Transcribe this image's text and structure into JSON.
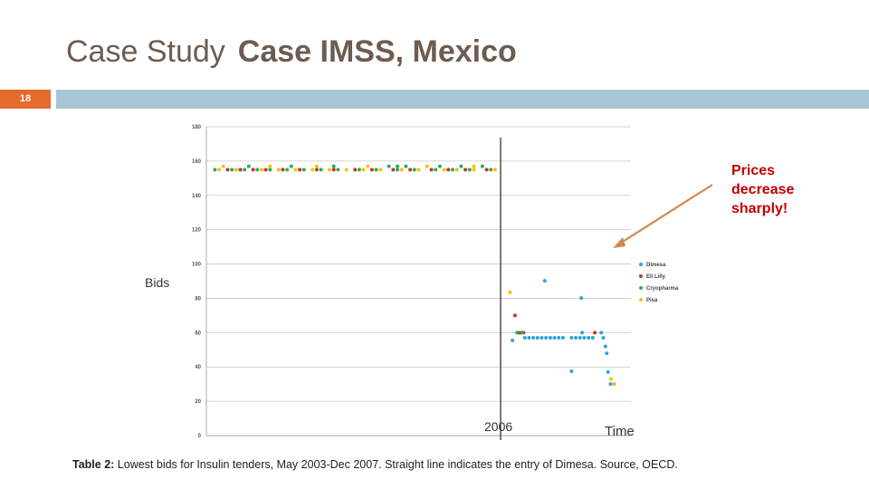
{
  "slide": {
    "title_prefix": "Case Study",
    "title_main": "Case IMSS, Mexico",
    "slide_number": "18",
    "callout": "Prices decrease sharply!",
    "bids_label": "Bids",
    "year_label": "2006",
    "time_label": "Time",
    "caption_bold": "Table 2:",
    "caption_text": " Lowest bids for Insulin tenders, May 2003-Dec 2007. Straight line indicates the entry of Dimesa. Source, OECD.",
    "accent_color": "#e36b2c",
    "band_color": "#a8c4d5",
    "callout_color": "#c00000",
    "arrow_color": "#d08850"
  },
  "chart_data": {
    "type": "scatter",
    "ylim": [
      0,
      180
    ],
    "yticks": [
      "0",
      "20",
      "40",
      "60",
      "80",
      "100",
      "120",
      "140",
      "160",
      "180"
    ],
    "xlim": [
      0,
      100
    ],
    "vline_x": 69.3,
    "legend": {
      "placement": "right"
    },
    "grid": true,
    "series": [
      {
        "name": "Dimesa",
        "color": "#2aa7d6",
        "points": [
          [
            72.1,
            55.5
          ],
          [
            79.7,
            90.2
          ],
          [
            88.3,
            80.2
          ],
          [
            75,
            57
          ],
          [
            76,
            57
          ],
          [
            77,
            57
          ],
          [
            78,
            57
          ],
          [
            79,
            57
          ],
          [
            80,
            57
          ],
          [
            81,
            57
          ],
          [
            82,
            57
          ],
          [
            83,
            57
          ],
          [
            84,
            57
          ],
          [
            86,
            57
          ],
          [
            87,
            57
          ],
          [
            88,
            57
          ],
          [
            89,
            57
          ],
          [
            90,
            57
          ],
          [
            91,
            57
          ],
          [
            88.5,
            60
          ],
          [
            93,
            60
          ],
          [
            93.5,
            57
          ],
          [
            94,
            52
          ],
          [
            94.3,
            48
          ],
          [
            94.6,
            37
          ],
          [
            95.2,
            30
          ],
          [
            96,
            30
          ],
          [
            86,
            37.5
          ]
        ]
      },
      {
        "name": "Eli Lilly",
        "color": "#c0392b",
        "points": [
          [
            72.7,
            70
          ],
          [
            73.5,
            60
          ],
          [
            74.1,
            60
          ],
          [
            74.7,
            60
          ],
          [
            91.5,
            60
          ],
          [
            5,
            155
          ],
          [
            8,
            155
          ],
          [
            11,
            155
          ],
          [
            14,
            155
          ],
          [
            18,
            155
          ],
          [
            22,
            155
          ],
          [
            26,
            155
          ],
          [
            30,
            155
          ],
          [
            35,
            155
          ],
          [
            39,
            155
          ],
          [
            44,
            155
          ],
          [
            48,
            155
          ],
          [
            53,
            155
          ],
          [
            57,
            155
          ],
          [
            61,
            155
          ],
          [
            66,
            155
          ]
        ]
      },
      {
        "name": "Cryopharma",
        "color": "#27ae60",
        "points": [
          [
            73.2,
            60
          ],
          [
            74.4,
            60
          ],
          [
            2,
            155
          ],
          [
            6,
            155
          ],
          [
            9,
            155
          ],
          [
            12,
            155
          ],
          [
            15,
            155
          ],
          [
            19,
            155
          ],
          [
            23,
            155
          ],
          [
            27,
            155
          ],
          [
            31,
            155
          ],
          [
            36,
            155
          ],
          [
            40,
            155
          ],
          [
            45,
            155
          ],
          [
            49,
            155
          ],
          [
            54,
            155
          ],
          [
            58,
            155
          ],
          [
            62,
            155
          ],
          [
            67,
            155
          ],
          [
            10,
            157
          ],
          [
            20,
            157
          ],
          [
            30,
            157
          ],
          [
            43,
            157
          ],
          [
            45,
            157
          ],
          [
            47,
            157
          ],
          [
            55,
            157
          ],
          [
            60,
            157
          ],
          [
            65,
            157
          ]
        ]
      },
      {
        "name": "Pisa",
        "color": "#f1c40f",
        "points": [
          [
            71.5,
            83.5
          ],
          [
            95.3,
            33
          ],
          [
            95.9,
            30
          ],
          [
            3,
            155
          ],
          [
            7,
            155
          ],
          [
            13,
            155
          ],
          [
            17,
            155
          ],
          [
            21,
            155
          ],
          [
            25,
            155
          ],
          [
            29,
            155
          ],
          [
            33,
            155
          ],
          [
            37,
            155
          ],
          [
            41,
            155
          ],
          [
            46,
            155
          ],
          [
            50,
            155
          ],
          [
            56,
            155
          ],
          [
            59,
            155
          ],
          [
            63,
            155
          ],
          [
            68,
            155
          ],
          [
            4,
            157
          ],
          [
            15,
            157
          ],
          [
            26,
            157
          ],
          [
            38,
            157
          ],
          [
            52,
            157
          ],
          [
            63,
            157
          ]
        ]
      }
    ]
  }
}
